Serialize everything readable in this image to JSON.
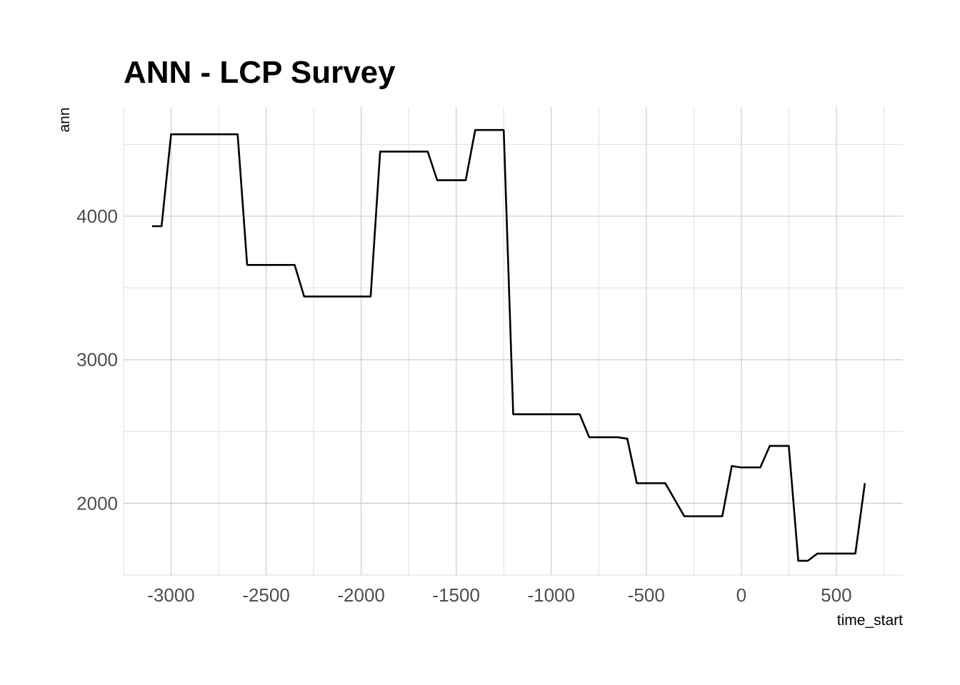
{
  "chart_data": {
    "type": "line",
    "title": "ANN - LCP Survey",
    "xlabel": "time_start",
    "ylabel": "ann",
    "xlim": [
      -3250,
      850
    ],
    "ylim": [
      1500,
      4760
    ],
    "x_ticks": [
      -3000,
      -2500,
      -2000,
      -1500,
      -1000,
      -500,
      0,
      500
    ],
    "y_ticks": [
      2000,
      3000,
      4000
    ],
    "x_tick_labels": [
      "-3000",
      "-2500",
      "-2000",
      "-1500",
      "-1000",
      "-500",
      "0",
      "500"
    ],
    "y_tick_labels": [
      "2000",
      "3000",
      "4000"
    ],
    "grid": true,
    "line_color": "#000000",
    "series": [
      {
        "x": [
          -3100,
          -3050,
          -3000,
          -2650,
          -2600,
          -2350,
          -2300,
          -1950,
          -1900,
          -1650,
          -1600,
          -1450,
          -1400,
          -1250,
          -1200,
          -850,
          -800,
          -650,
          -600,
          -550,
          -400,
          -300,
          -100,
          -50,
          0,
          100,
          150,
          250,
          300,
          350,
          400,
          600,
          650
        ],
        "y": [
          3930,
          3930,
          4570,
          4570,
          3660,
          3660,
          3440,
          3440,
          4450,
          4450,
          4250,
          4250,
          4600,
          4600,
          2620,
          2620,
          2460,
          2460,
          2450,
          2140,
          2140,
          1910,
          1910,
          2260,
          2250,
          2250,
          2400,
          2400,
          1600,
          1600,
          1650,
          1650,
          2140
        ]
      }
    ]
  }
}
